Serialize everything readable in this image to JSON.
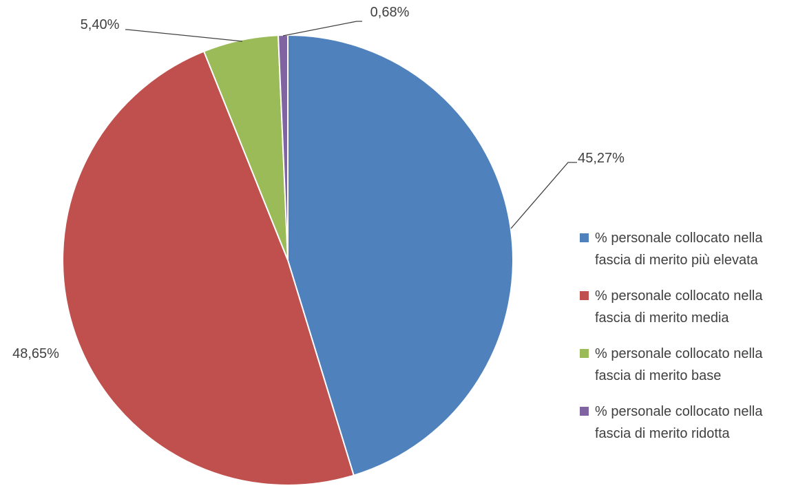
{
  "chart_data": {
    "type": "pie",
    "categories": [
      "% personale collocato nella fascia di merito più elevata",
      "% personale collocato nella fascia di merito media",
      "% personale collocato nella fascia di merito base",
      "% personale collocato nella fascia di merito ridotta"
    ],
    "values": [
      45.27,
      48.65,
      5.4,
      0.68
    ],
    "data_labels": [
      "45,27%",
      "48,65%",
      "5,40%",
      "0,68%"
    ],
    "colors": [
      "#4F81BD",
      "#C0504D",
      "#9BBB59",
      "#8064A2"
    ],
    "start_angle_deg": 0,
    "direction": "clockwise",
    "legend_position": "right"
  }
}
